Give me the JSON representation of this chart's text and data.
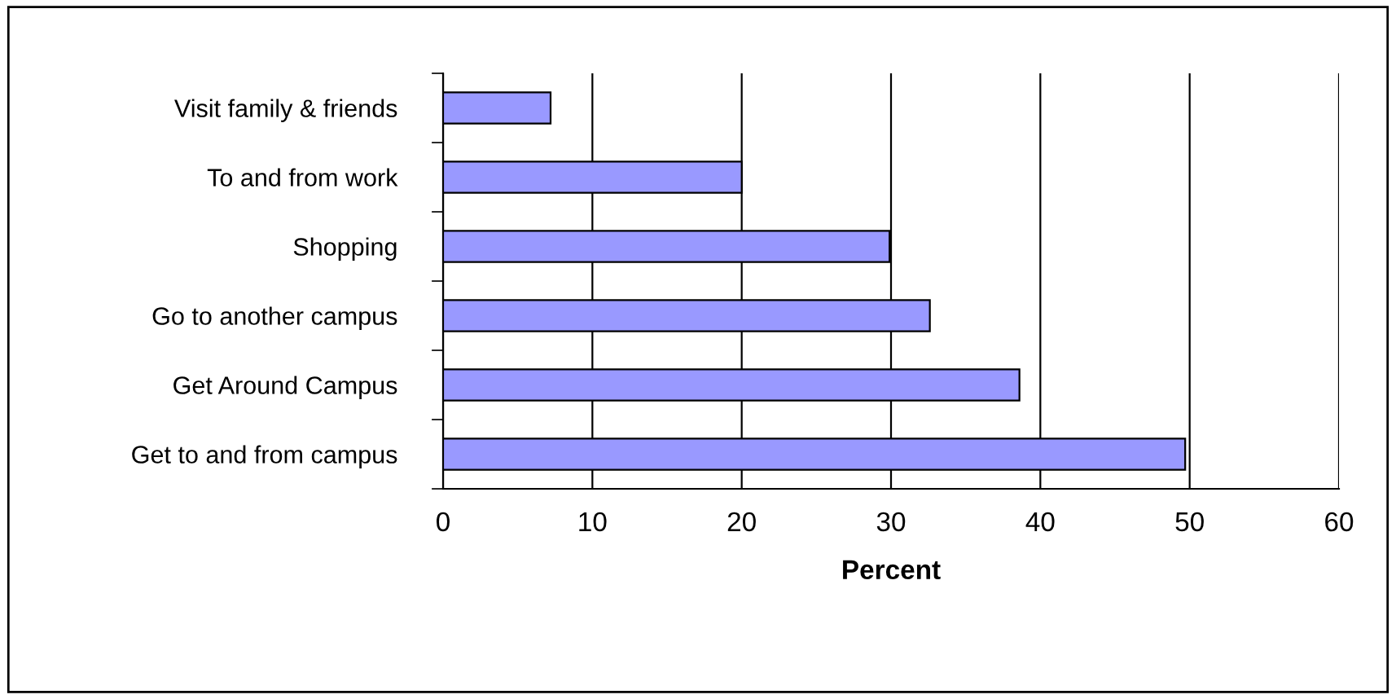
{
  "chart_data": {
    "type": "bar",
    "orientation": "horizontal",
    "xlabel": "Percent",
    "categories": [
      "Visit family & friends",
      "To and from work",
      "Shopping",
      "Go to another campus",
      "Get Around Campus",
      "Get to and from campus"
    ],
    "values": [
      7.2,
      20,
      29.9,
      32.6,
      38.6,
      49.7
    ],
    "color": "#9999ff",
    "xlim": [
      0,
      60
    ],
    "xticks": [
      0,
      10,
      20,
      30,
      40,
      50,
      60
    ],
    "grid": "x",
    "legend": false
  }
}
